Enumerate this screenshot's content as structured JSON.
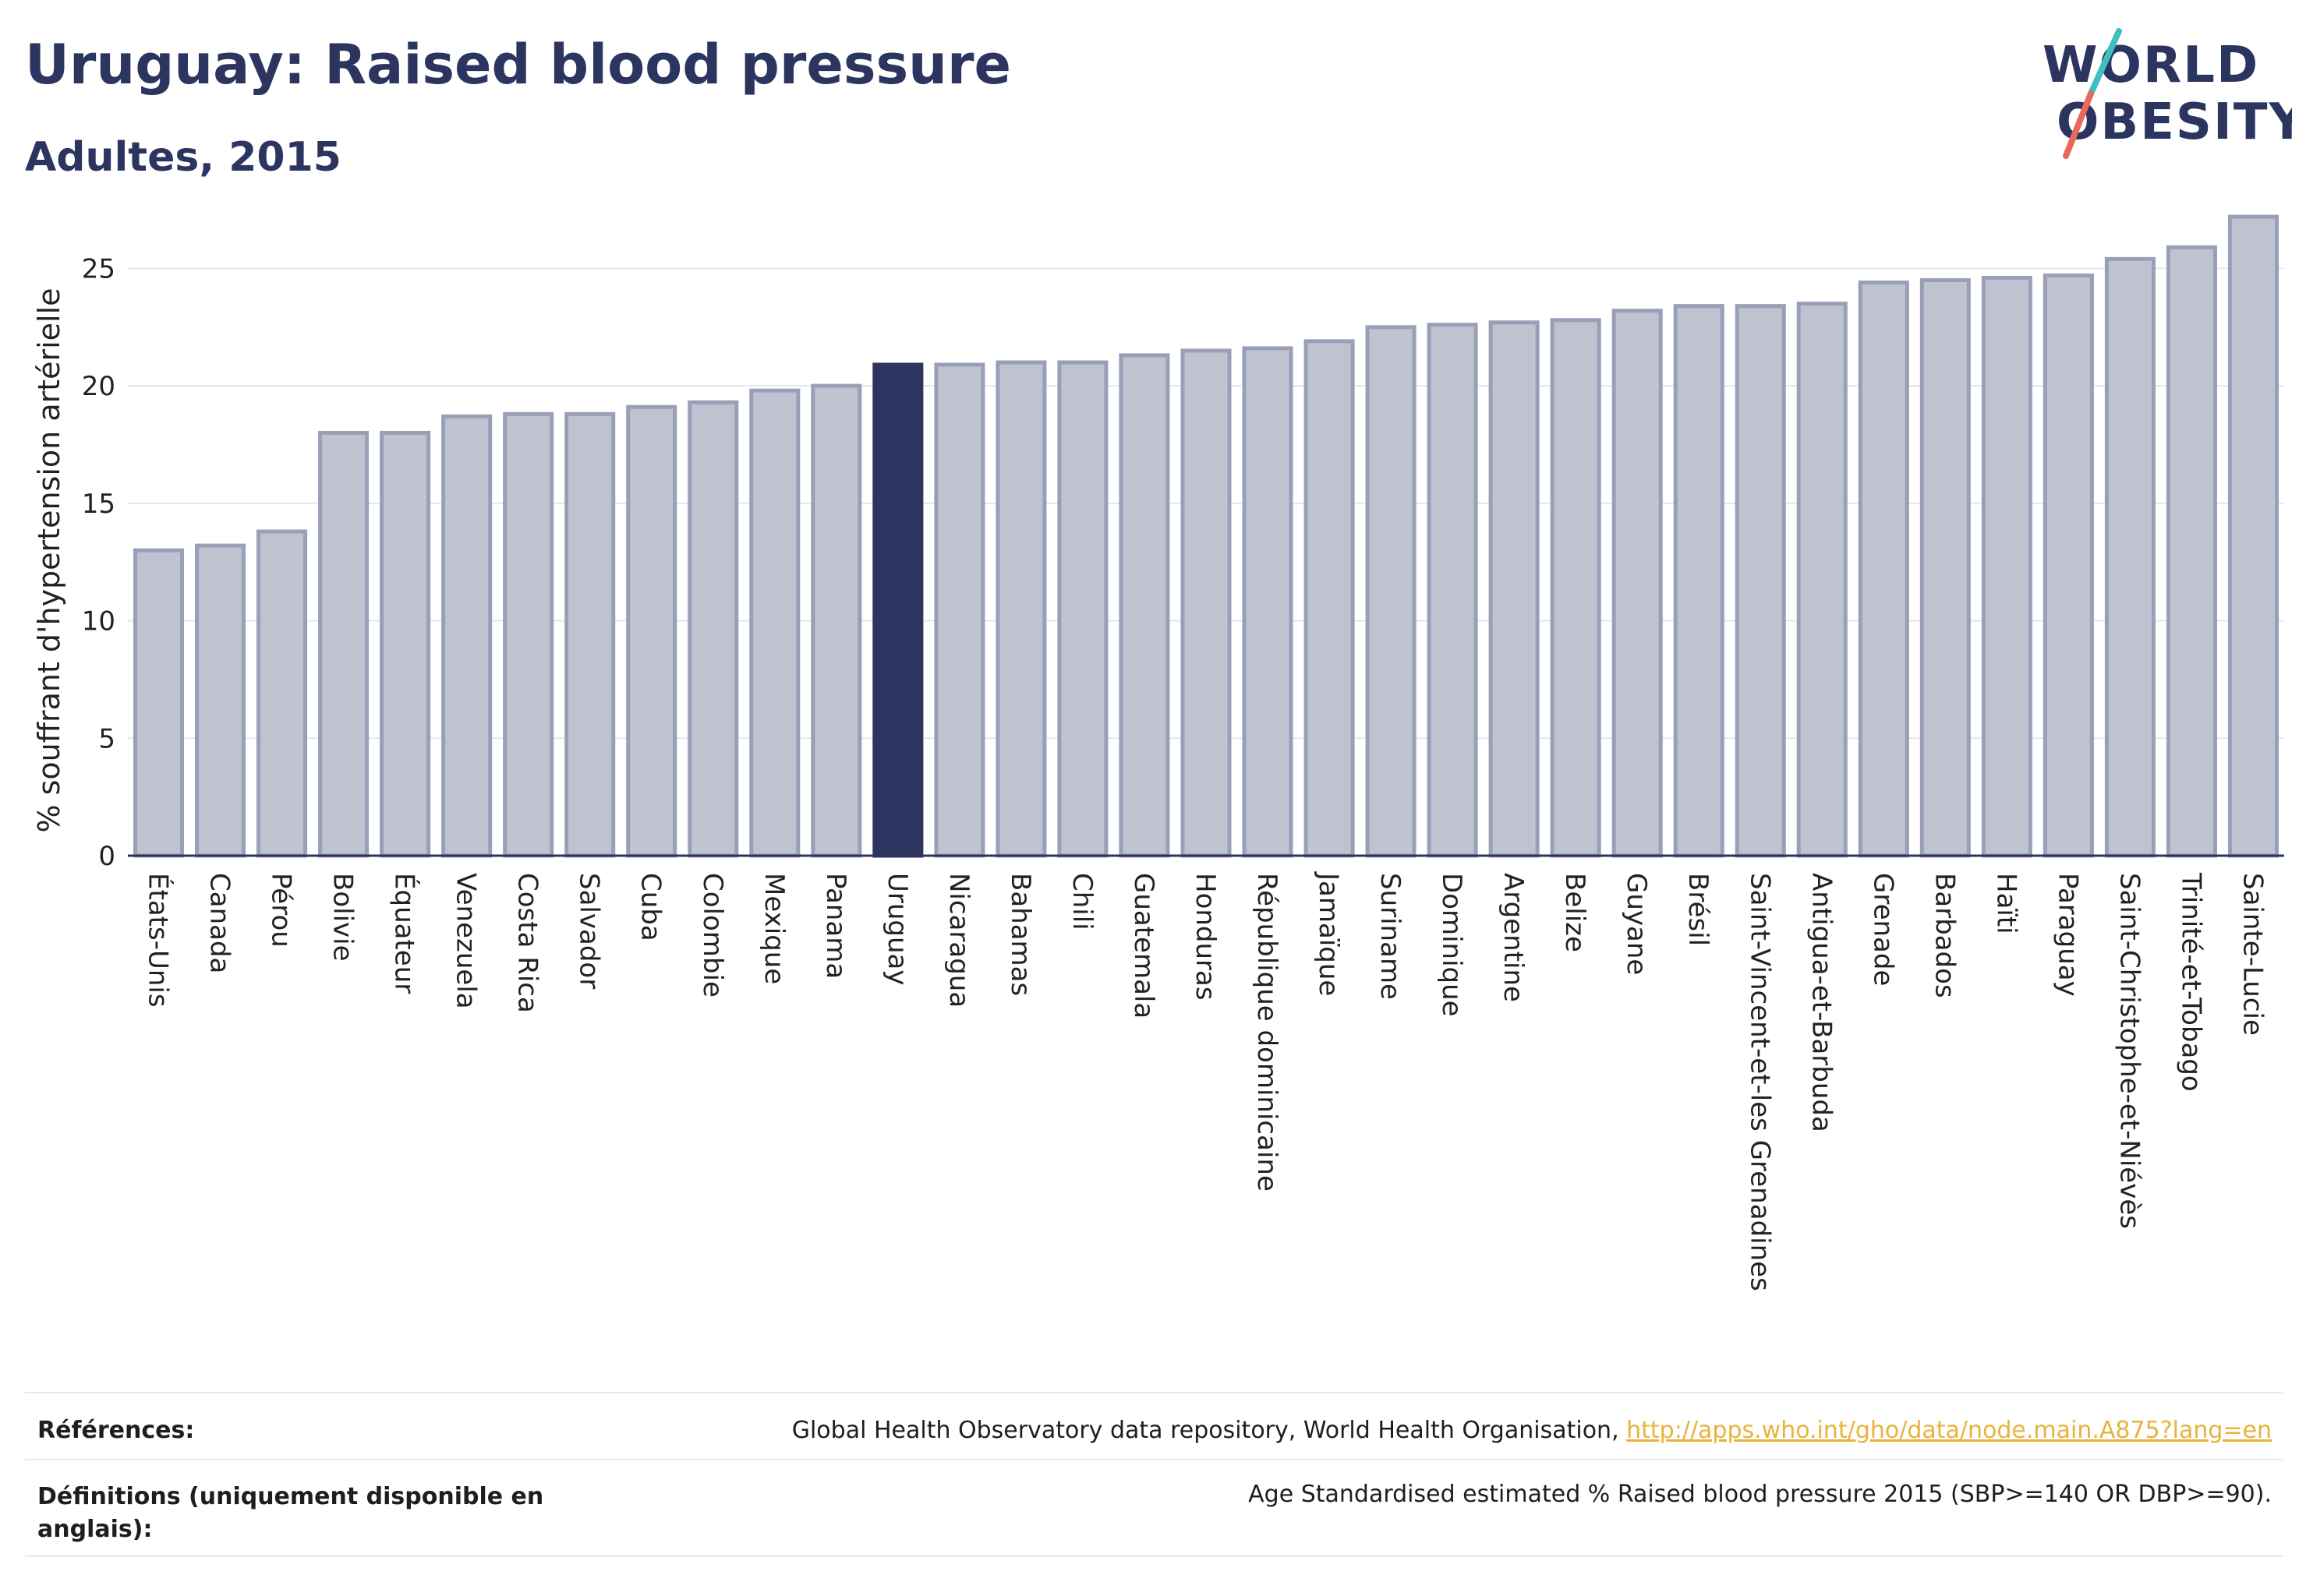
{
  "header": {
    "title": "Uruguay: Raised blood pressure",
    "subtitle": "Adultes, 2015",
    "logo_line1": "WORLD",
    "logo_line2": "OBESITY"
  },
  "colors": {
    "highlight": "#2c355f",
    "bar_fill": "#bfc2cf",
    "bar_stroke": "#9a9fb8",
    "axis": "#2a3561",
    "grid": "#e6e6ea",
    "link": "#e8b33c",
    "logo_slash_teal": "#3fbfbf",
    "logo_slash_red": "#e8685a"
  },
  "chart_data": {
    "type": "bar",
    "ylabel": "% souffrant d'hypertension artérielle",
    "ylim": [
      0,
      27.8
    ],
    "yticks": [
      0,
      5,
      10,
      15,
      20,
      25
    ],
    "highlight_category": "Uruguay",
    "grid": true,
    "categories": [
      "États-Unis",
      "Canada",
      "Pérou",
      "Bolivie",
      "Équateur",
      "Venezuela",
      "Costa Rica",
      "Salvador",
      "Cuba",
      "Colombie",
      "Mexique",
      "Panama",
      "Uruguay",
      "Nicaragua",
      "Bahamas",
      "Chili",
      "Guatemala",
      "Honduras",
      "République dominicaine",
      "Jamaïque",
      "Suriname",
      "Dominique",
      "Argentine",
      "Belize",
      "Guyane",
      "Brésil",
      "Saint-Vincent-et-les Grenadines",
      "Antigua-et-Barbuda",
      "Grenade",
      "Barbados",
      "Haïti",
      "Paraguay",
      "Saint-Christophe-et-Niévès",
      "Trinité-et-Tobago",
      "Sainte-Lucie"
    ],
    "values": [
      13.0,
      13.2,
      13.8,
      18.0,
      18.0,
      18.7,
      18.8,
      18.8,
      19.1,
      19.3,
      19.8,
      20.0,
      20.9,
      20.9,
      21.0,
      21.0,
      21.3,
      21.5,
      21.6,
      21.9,
      22.5,
      22.6,
      22.7,
      22.8,
      23.2,
      23.4,
      23.4,
      23.5,
      24.4,
      24.5,
      24.6,
      24.7,
      25.4,
      25.9,
      27.2
    ]
  },
  "footer": {
    "references_label": "Références:",
    "references_text": "Global Health Observatory data repository, World Health Organisation, ",
    "references_link": "http://apps.who.int/gho/data/node.main.A875?lang=en",
    "definitions_label": "Définitions (uniquement disponible en anglais):",
    "definitions_text": "Age Standardised estimated % Raised blood pressure 2015 (SBP>=140 OR DBP>=90)."
  }
}
